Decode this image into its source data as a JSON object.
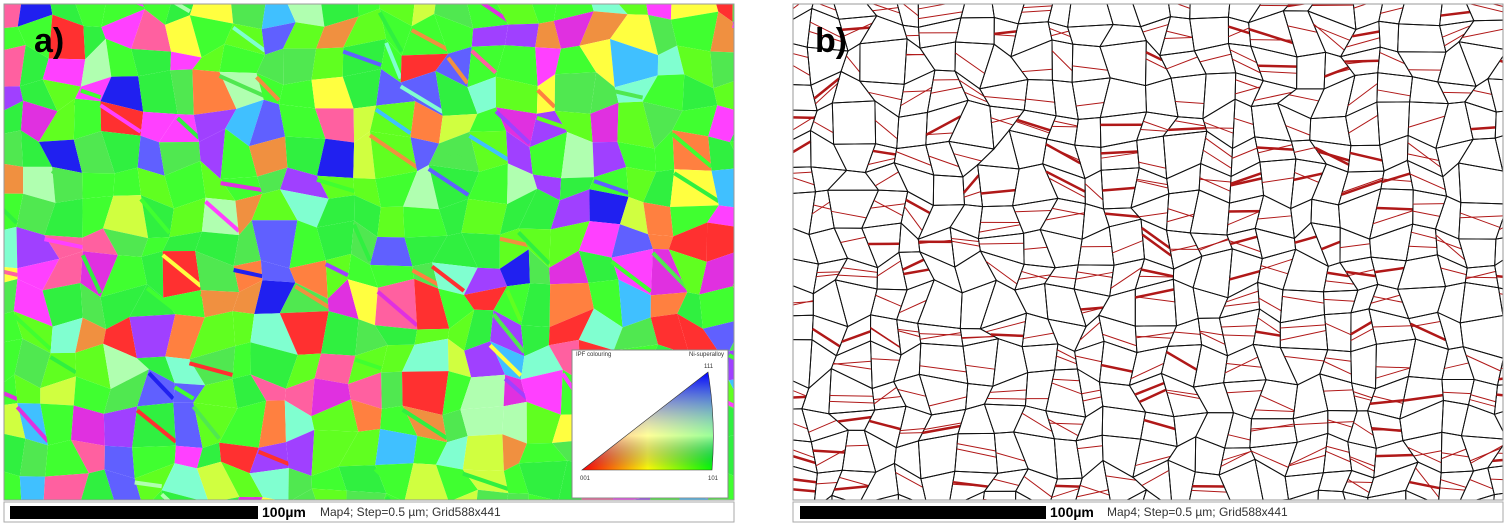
{
  "panels": [
    {
      "label": "a)",
      "scale_bar": "100µm",
      "info": "Map4; Step=0.5 µm; Grid588x441",
      "legend": {
        "title": "IPF colouring",
        "material": "Ni-superalloy",
        "corners": [
          "001",
          "101",
          "111"
        ]
      }
    },
    {
      "label": "b)",
      "scale_bar": "100µm",
      "info": "Map4; Step=0.5 µm; Grid588x441"
    }
  ]
}
